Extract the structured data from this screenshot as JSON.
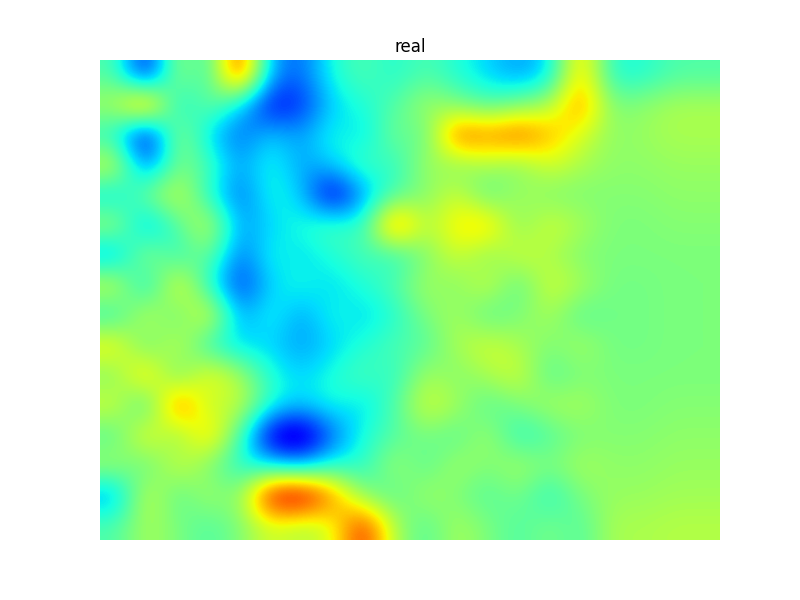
{
  "chart_data": {
    "type": "heatmap",
    "title": "real",
    "tick_labels": false,
    "cells": [
      [
        0.45,
        0.15,
        0.55,
        0.4,
        0.85,
        0.3,
        0.25,
        0.4,
        0.45,
        0.4,
        0.45,
        0.4,
        0.35,
        0.3,
        0.35,
        0.7,
        0.4,
        0.4,
        0.45,
        0.45
      ],
      [
        0.55,
        0.8,
        0.35,
        0.5,
        0.35,
        0.15,
        0.2,
        0.35,
        0.4,
        0.45,
        0.55,
        0.5,
        0.45,
        0.5,
        0.55,
        0.75,
        0.5,
        0.52,
        0.55,
        0.55
      ],
      [
        0.4,
        0.1,
        0.55,
        0.35,
        0.25,
        0.35,
        0.3,
        0.4,
        0.35,
        0.5,
        0.45,
        0.8,
        0.75,
        0.8,
        0.7,
        0.6,
        0.52,
        0.53,
        0.55,
        0.55
      ],
      [
        0.6,
        0.25,
        0.5,
        0.45,
        0.3,
        0.4,
        0.3,
        0.35,
        0.45,
        0.4,
        0.55,
        0.5,
        0.55,
        0.5,
        0.6,
        0.55,
        0.52,
        0.52,
        0.53,
        0.53
      ],
      [
        0.35,
        0.5,
        0.6,
        0.4,
        0.25,
        0.4,
        0.35,
        0.1,
        0.3,
        0.45,
        0.5,
        0.6,
        0.45,
        0.55,
        0.5,
        0.5,
        0.51,
        0.51,
        0.52,
        0.52
      ],
      [
        0.55,
        0.3,
        0.45,
        0.6,
        0.3,
        0.35,
        0.4,
        0.45,
        0.4,
        0.8,
        0.55,
        0.65,
        0.7,
        0.5,
        0.6,
        0.55,
        0.5,
        0.5,
        0.51,
        0.51
      ],
      [
        0.3,
        0.55,
        0.4,
        0.5,
        0.25,
        0.4,
        0.35,
        0.4,
        0.45,
        0.4,
        0.5,
        0.6,
        0.5,
        0.6,
        0.55,
        0.5,
        0.5,
        0.5,
        0.5,
        0.5
      ],
      [
        0.6,
        0.35,
        0.65,
        0.4,
        0.2,
        0.35,
        0.4,
        0.35,
        0.4,
        0.45,
        0.55,
        0.5,
        0.6,
        0.45,
        0.6,
        0.55,
        0.49,
        0.49,
        0.5,
        0.5
      ],
      [
        0.4,
        0.6,
        0.45,
        0.65,
        0.3,
        0.4,
        0.3,
        0.4,
        0.35,
        0.4,
        0.5,
        0.55,
        0.45,
        0.5,
        0.55,
        0.45,
        0.49,
        0.49,
        0.5,
        0.5
      ],
      [
        0.65,
        0.45,
        0.6,
        0.4,
        0.35,
        0.35,
        0.3,
        0.35,
        0.4,
        0.45,
        0.45,
        0.55,
        0.6,
        0.55,
        0.5,
        0.55,
        0.49,
        0.49,
        0.5,
        0.5
      ],
      [
        0.5,
        0.7,
        0.45,
        0.65,
        0.55,
        0.4,
        0.35,
        0.4,
        0.45,
        0.4,
        0.55,
        0.5,
        0.55,
        0.6,
        0.45,
        0.5,
        0.5,
        0.5,
        0.5,
        0.5
      ],
      [
        0.6,
        0.4,
        0.8,
        0.55,
        0.6,
        0.4,
        0.35,
        0.4,
        0.35,
        0.45,
        0.6,
        0.55,
        0.45,
        0.5,
        0.55,
        0.55,
        0.5,
        0.5,
        0.51,
        0.51
      ],
      [
        0.45,
        0.65,
        0.5,
        0.7,
        0.45,
        0.1,
        0.05,
        0.25,
        0.4,
        0.45,
        0.5,
        0.45,
        0.55,
        0.4,
        0.45,
        0.5,
        0.51,
        0.51,
        0.52,
        0.52
      ],
      [
        0.55,
        0.45,
        0.6,
        0.5,
        0.4,
        0.35,
        0.3,
        0.4,
        0.4,
        0.55,
        0.45,
        0.55,
        0.5,
        0.55,
        0.5,
        0.55,
        0.52,
        0.52,
        0.53,
        0.53
      ],
      [
        0.3,
        0.6,
        0.45,
        0.55,
        0.5,
        0.9,
        0.95,
        0.75,
        0.5,
        0.45,
        0.55,
        0.5,
        0.45,
        0.5,
        0.4,
        0.5,
        0.53,
        0.53,
        0.54,
        0.54
      ],
      [
        0.45,
        0.55,
        0.5,
        0.45,
        0.5,
        0.6,
        0.55,
        0.6,
        0.85,
        0.55,
        0.45,
        0.55,
        0.5,
        0.45,
        0.5,
        0.45,
        0.55,
        0.55,
        0.56,
        0.56
      ]
    ]
  }
}
